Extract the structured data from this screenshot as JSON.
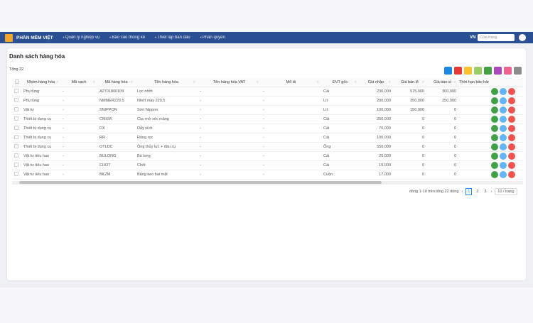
{
  "header": {
    "brand": "PHẦN MỀM VIỆT",
    "menu": [
      "Quản lý nghiệp vụ",
      "Báo cáo thống kê",
      "Thiết lập ban đầu",
      "Phân quyền"
    ],
    "language": "VN",
    "store_placeholder": "Cửa hàng"
  },
  "page": {
    "title": "Danh sách hàng hóa",
    "total": "Tổng 22"
  },
  "table": {
    "columns": [
      "Nhóm hàng hóa",
      "Mã vạch",
      "Mã hàng hóa",
      "Tên hàng hóa",
      "Tên hàng hóa VAT",
      "Mô tả",
      "ĐVT gốc",
      "Giá nhập",
      "Giá bán lẻ",
      "Giá bán sỉ",
      "Thời hạn bảo hành"
    ],
    "rows": [
      [
        "Phụ tùng",
        "-",
        "A2701800109",
        "Lọc nhớt",
        "-",
        "-",
        "Cái",
        "230,000",
        "575,000",
        "300,000"
      ],
      [
        "Phụ tùng",
        "-",
        "NMMER229.5",
        "Nhớt máy 229.5",
        "-",
        "-",
        "Lít",
        "200,000",
        "350,000",
        "250,000"
      ],
      [
        "Vật tư",
        "-",
        "SNIPPON",
        "Sơn Nippon",
        "-",
        "-",
        "Lít",
        "100,000",
        "150,000",
        "0"
      ],
      [
        "Thiết bị dụng cụ",
        "-",
        "CMXM",
        "Cục mở xéc măng",
        "-",
        "-",
        "Cái",
        "250,000",
        "0",
        "0"
      ],
      [
        "Thiết bị dụng cụ",
        "-",
        "DX",
        "Dây xích",
        "-",
        "-",
        "Cái",
        "70,000",
        "0",
        "0"
      ],
      [
        "Thiết bị dụng cụ",
        "-",
        "RR",
        "Ròng rọc",
        "-",
        "-",
        "Cái",
        "100,000",
        "0",
        "0"
      ],
      [
        "Thiết bị dụng cụ",
        "-",
        "OTLDC",
        "Ống thủy lực + đầu cụ",
        "-",
        "-",
        "Ống",
        "550,000",
        "0",
        "0"
      ],
      [
        "Vật tư tiêu hao",
        "-",
        "BULONG",
        "Bù long",
        "-",
        "-",
        "Cái",
        "25,000",
        "0",
        "0"
      ],
      [
        "Vật tư tiêu hao",
        "-",
        "CHOT",
        "Chốt",
        "-",
        "-",
        "Cái",
        "15,000",
        "0",
        "0"
      ],
      [
        "Vật tư tiêu hao",
        "-",
        "BKZM",
        "Băng keo hai mặt",
        "-",
        "-",
        "Cuộn",
        "17,000",
        "0",
        "0"
      ]
    ]
  },
  "pagination": {
    "summary": "dòng 1-10 trên tổng 22 dòng",
    "pages": [
      "1",
      "2",
      "3"
    ],
    "page_size": "10 / trang"
  }
}
